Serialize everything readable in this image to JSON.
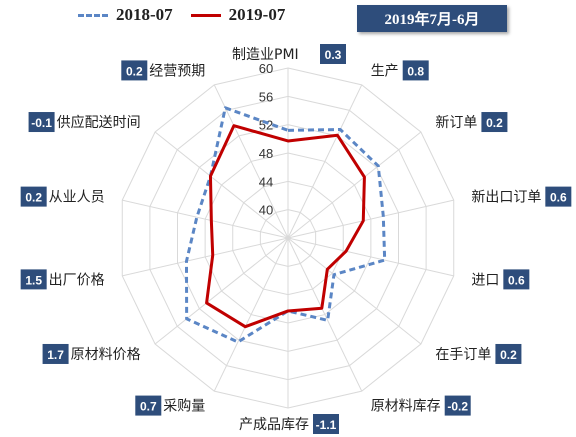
{
  "header": {
    "period_label": "2019年7月-6月"
  },
  "colors": {
    "series_2018": "#5b86c5",
    "series_2019": "#c00000",
    "value_box": "#2e4d7b"
  },
  "chart_data": {
    "type": "radar",
    "axes": [
      "制造业PMI",
      "生产",
      "新订单",
      "新出口订单",
      "进口",
      "在手订单",
      "原材料库存",
      "产成品库存",
      "采购量",
      "原材料价格",
      "出厂价格",
      "从业人员",
      "供应配送时间",
      "经营预期"
    ],
    "changes": [
      "0.3",
      "0.8",
      "0.2",
      "0.6",
      "0.6",
      "0.2",
      "-0.2",
      "-1.1",
      "0.7",
      "1.7",
      "1.5",
      "0.2",
      "-0.1",
      "0.2"
    ],
    "r_min": 36,
    "r_max": 60,
    "ticks": [
      40,
      44,
      48,
      52,
      56,
      60
    ],
    "series": [
      {
        "name": "2018-07",
        "style": "dashed",
        "values": [
          51.2,
          53.0,
          52.3,
          49.8,
          50.0,
          44.3,
          48.9,
          46.3,
          52.3,
          54.3,
          50.7,
          49.2,
          50.0,
          56.4
        ]
      },
      {
        "name": "2019-07",
        "style": "solid",
        "values": [
          49.7,
          52.1,
          49.8,
          46.9,
          44.4,
          43.1,
          47.0,
          46.3,
          49.9,
          50.7,
          46.9,
          47.1,
          50.0,
          53.6
        ]
      }
    ]
  }
}
